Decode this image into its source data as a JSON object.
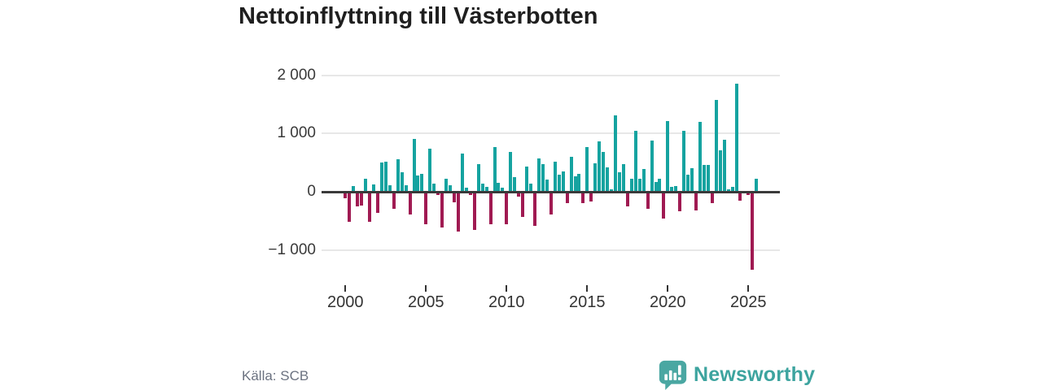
{
  "title": "Nettoinflyttning till Västerbotten",
  "source": "Källa: SCB",
  "brand": {
    "name": "Newsworthy"
  },
  "colors": {
    "positive": "#15a3a0",
    "negative": "#a01a52",
    "axis": "#3a3a3a",
    "grid": "#e7e7e7",
    "title": "#1f1f1f",
    "tick_label": "#333333",
    "source_text": "#6b7280",
    "brand_teal": "#3da49f",
    "brand_icon": "#4aa7a2"
  },
  "chart_data": {
    "type": "bar",
    "title": "Nettoinflyttning till Västerbotten",
    "frequency": "quarterly",
    "start_year": 2000,
    "start_quarter": 1,
    "grid": "on",
    "legend": "none",
    "ylim": [
      -1500,
      2100
    ],
    "y_ticks": [
      {
        "label": "2 000",
        "value": 2000
      },
      {
        "label": "1 000",
        "value": 1000
      },
      {
        "label": "0",
        "value": 0
      },
      {
        "label": "−1 000",
        "value": -1000
      }
    ],
    "x_ticks": [
      {
        "label": "2000",
        "year": 2000
      },
      {
        "label": "2005",
        "year": 2005
      },
      {
        "label": "2010",
        "year": 2010
      },
      {
        "label": "2015",
        "year": 2015
      },
      {
        "label": "2020",
        "year": 2020
      },
      {
        "label": "2025",
        "year": 2025
      }
    ],
    "series": [
      {
        "name": "Nettoinflyttning",
        "values": [
          -105,
          -520,
          105,
          -255,
          -230,
          227,
          -510,
          130,
          -361,
          505,
          519,
          116,
          -292,
          556,
          333,
          116,
          -384,
          903,
          273,
          301,
          -560,
          736,
          139,
          -50,
          -616,
          218,
          116,
          -176,
          -685,
          657,
          69,
          -60,
          -653,
          472,
          140,
          88,
          -560,
          764,
          157,
          69,
          -560,
          690,
          250,
          -83,
          -430,
          440,
          134,
          -592,
          574,
          481,
          208,
          -384,
          518,
          287,
          343,
          -199,
          597,
          264,
          310,
          -199,
          764,
          -162,
          482,
          866,
          690,
          426,
          42,
          1305,
          333,
          472,
          -245,
          217,
          1050,
          227,
          394,
          -292,
          875,
          171,
          217,
          -454,
          1213,
          88,
          102,
          -338,
          1051,
          287,
          400,
          -315,
          1199,
          458,
          458,
          -199,
          1583,
          713,
          889,
          40,
          88,
          1852,
          -150,
          -20,
          -60,
          -1333,
          218
        ]
      }
    ]
  }
}
